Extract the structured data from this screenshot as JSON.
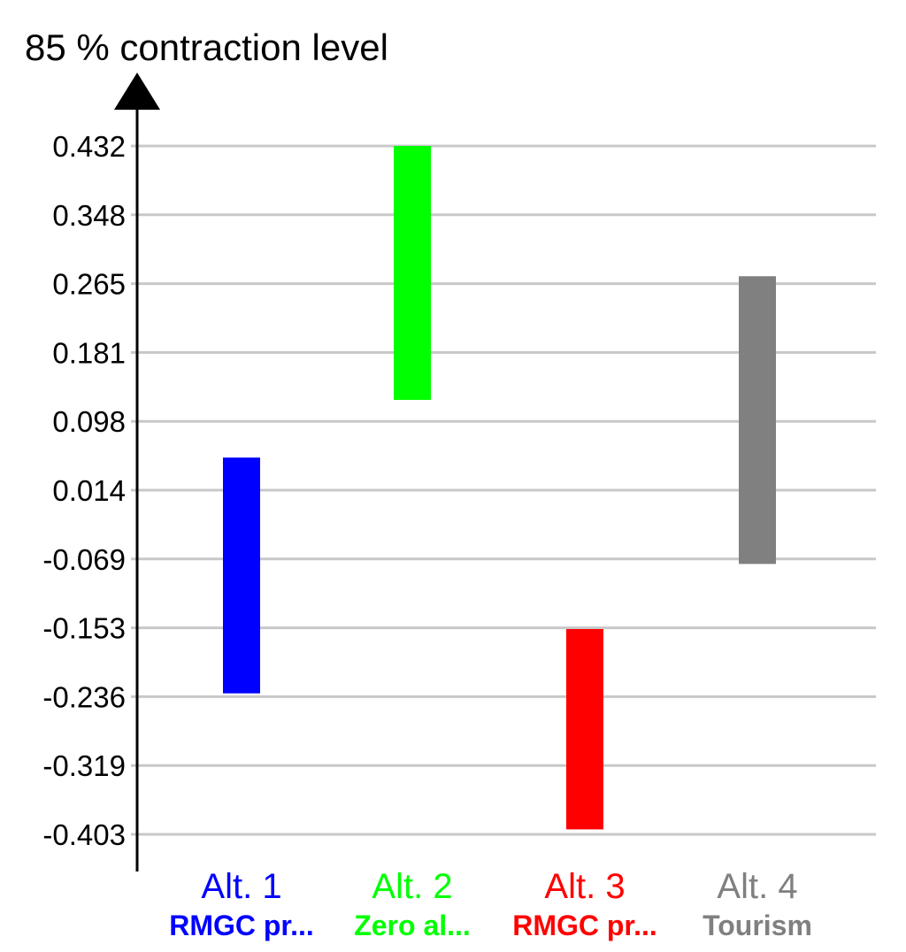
{
  "chart_data": {
    "type": "bar",
    "subtype": "floating-range",
    "title": "",
    "ylabel": "85 % contraction level",
    "xlabel": "",
    "ylim": [
      -0.403,
      0.432
    ],
    "grid": true,
    "legend": "none",
    "y_ticks": [
      "0.432",
      "0.348",
      "0.265",
      "0.181",
      "0.098",
      "0.014",
      "-0.069",
      "-0.153",
      "-0.236",
      "-0.319",
      "-0.403"
    ],
    "categories": [
      {
        "name": "Alt. 1",
        "subtitle": "RMGC pr...",
        "color": "#0000ff",
        "low": -0.232,
        "high": 0.054
      },
      {
        "name": "Alt. 2",
        "subtitle": "Zero al...",
        "color": "#00ff00",
        "low": 0.124,
        "high": 0.432
      },
      {
        "name": "Alt. 3",
        "subtitle": "RMGC pr...",
        "color": "#ff0000",
        "low": -0.397,
        "high": -0.154
      },
      {
        "name": "Alt. 4",
        "subtitle": "Tourism",
        "color": "#808080",
        "low": -0.075,
        "high": 0.274
      }
    ],
    "colors": {
      "grid": "#c8c8c8",
      "axis": "#000000"
    }
  }
}
